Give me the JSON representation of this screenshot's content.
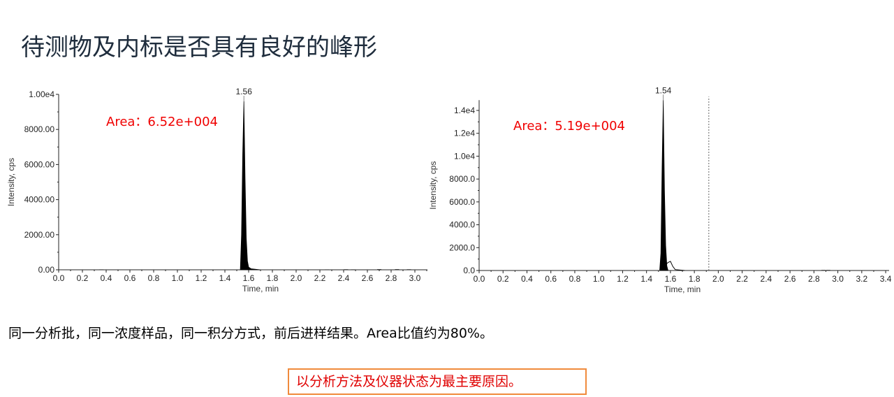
{
  "slide": {
    "title": "待测物及内标是否具有良好的峰形",
    "note": "同一分析批，同一浓度样品，同一积分方式，前后进样结果。Area比值约为80%。",
    "conclusion": "以分析方法及仪器状态为最主要原因。",
    "colors": {
      "title": "#1f2d3d",
      "area_text": "#f00000",
      "box_border": "#f08a3c",
      "peak_fill": "#000000"
    }
  },
  "chart_data": [
    {
      "type": "area",
      "xlabel": "Time, min",
      "ylabel": "Intensity, cps",
      "xlim": [
        0,
        3.05
      ],
      "ylim": [
        0,
        10000
      ],
      "xticks": [
        "0.0",
        "0.2",
        "0.4",
        "0.6",
        "0.8",
        "1.0",
        "1.2",
        "1.4",
        "1.6",
        "1.8",
        "2.0",
        "2.2",
        "2.4",
        "2.6",
        "2.8",
        "3.0"
      ],
      "yticks": [
        {
          "v": 0,
          "label": "0.00"
        },
        {
          "v": 2000,
          "label": "2000.00"
        },
        {
          "v": 4000,
          "label": "4000.00"
        },
        {
          "v": 6000,
          "label": "6000.00"
        },
        {
          "v": 8000,
          "label": "8000.00"
        },
        {
          "v": 10000,
          "label": "1.00e4"
        }
      ],
      "peak_label": "1.56",
      "peak_rt": 1.56,
      "area_label": "Area：6.52e+004",
      "integrated": [
        [
          1.53,
          0
        ],
        [
          1.54,
          2000
        ],
        [
          1.55,
          6600
        ],
        [
          1.56,
          9600
        ],
        [
          1.57,
          5200
        ],
        [
          1.58,
          1800
        ],
        [
          1.59,
          500
        ],
        [
          1.6,
          150
        ],
        [
          1.62,
          60
        ],
        [
          1.66,
          30
        ],
        [
          1.7,
          0
        ]
      ],
      "baseline_noise": [
        [
          0.36,
          20
        ],
        [
          2.26,
          15
        ],
        [
          2.42,
          25
        ],
        [
          2.48,
          20
        ],
        [
          2.7,
          30
        ],
        [
          2.85,
          30
        ],
        [
          2.95,
          25
        ]
      ]
    },
    {
      "type": "area",
      "xlabel": "Time, min",
      "ylabel": "Intensity, cps",
      "xlim": [
        0,
        3.45
      ],
      "ylim": [
        0,
        14900
      ],
      "xticks": [
        "0.0",
        "0.2",
        "0.4",
        "0.6",
        "0.8",
        "1.0",
        "1.2",
        "1.4",
        "1.6",
        "1.8",
        "2.0",
        "2.2",
        "2.4",
        "2.6",
        "2.8",
        "3.0",
        "3.2",
        "3.4"
      ],
      "yticks": [
        {
          "v": 0,
          "label": "0.0"
        },
        {
          "v": 2000,
          "label": "2000.0"
        },
        {
          "v": 4000,
          "label": "4000.0"
        },
        {
          "v": 6000,
          "label": "6000.0"
        },
        {
          "v": 8000,
          "label": "8000.0"
        },
        {
          "v": 10000,
          "label": "1.0e4"
        },
        {
          "v": 12000,
          "label": "1.2e4"
        },
        {
          "v": 14000,
          "label": "1.4e4"
        }
      ],
      "peak_label": "1.54",
      "peak_rt": 1.54,
      "area_label": "Area：5.19e+004",
      "marker_line_x": 1.95,
      "integrated": [
        [
          1.51,
          0
        ],
        [
          1.52,
          1500
        ],
        [
          1.53,
          9000
        ],
        [
          1.54,
          14900
        ],
        [
          1.55,
          7000
        ],
        [
          1.56,
          2200
        ],
        [
          1.57,
          400
        ],
        [
          1.58,
          0
        ]
      ],
      "unintegrated": [
        [
          1.51,
          0
        ],
        [
          1.58,
          700
        ],
        [
          1.6,
          800
        ],
        [
          1.62,
          350
        ],
        [
          1.64,
          80
        ],
        [
          1.68,
          40
        ],
        [
          1.72,
          0
        ]
      ],
      "baseline_noise": [
        [
          2.88,
          40
        ],
        [
          2.92,
          40
        ]
      ]
    }
  ]
}
